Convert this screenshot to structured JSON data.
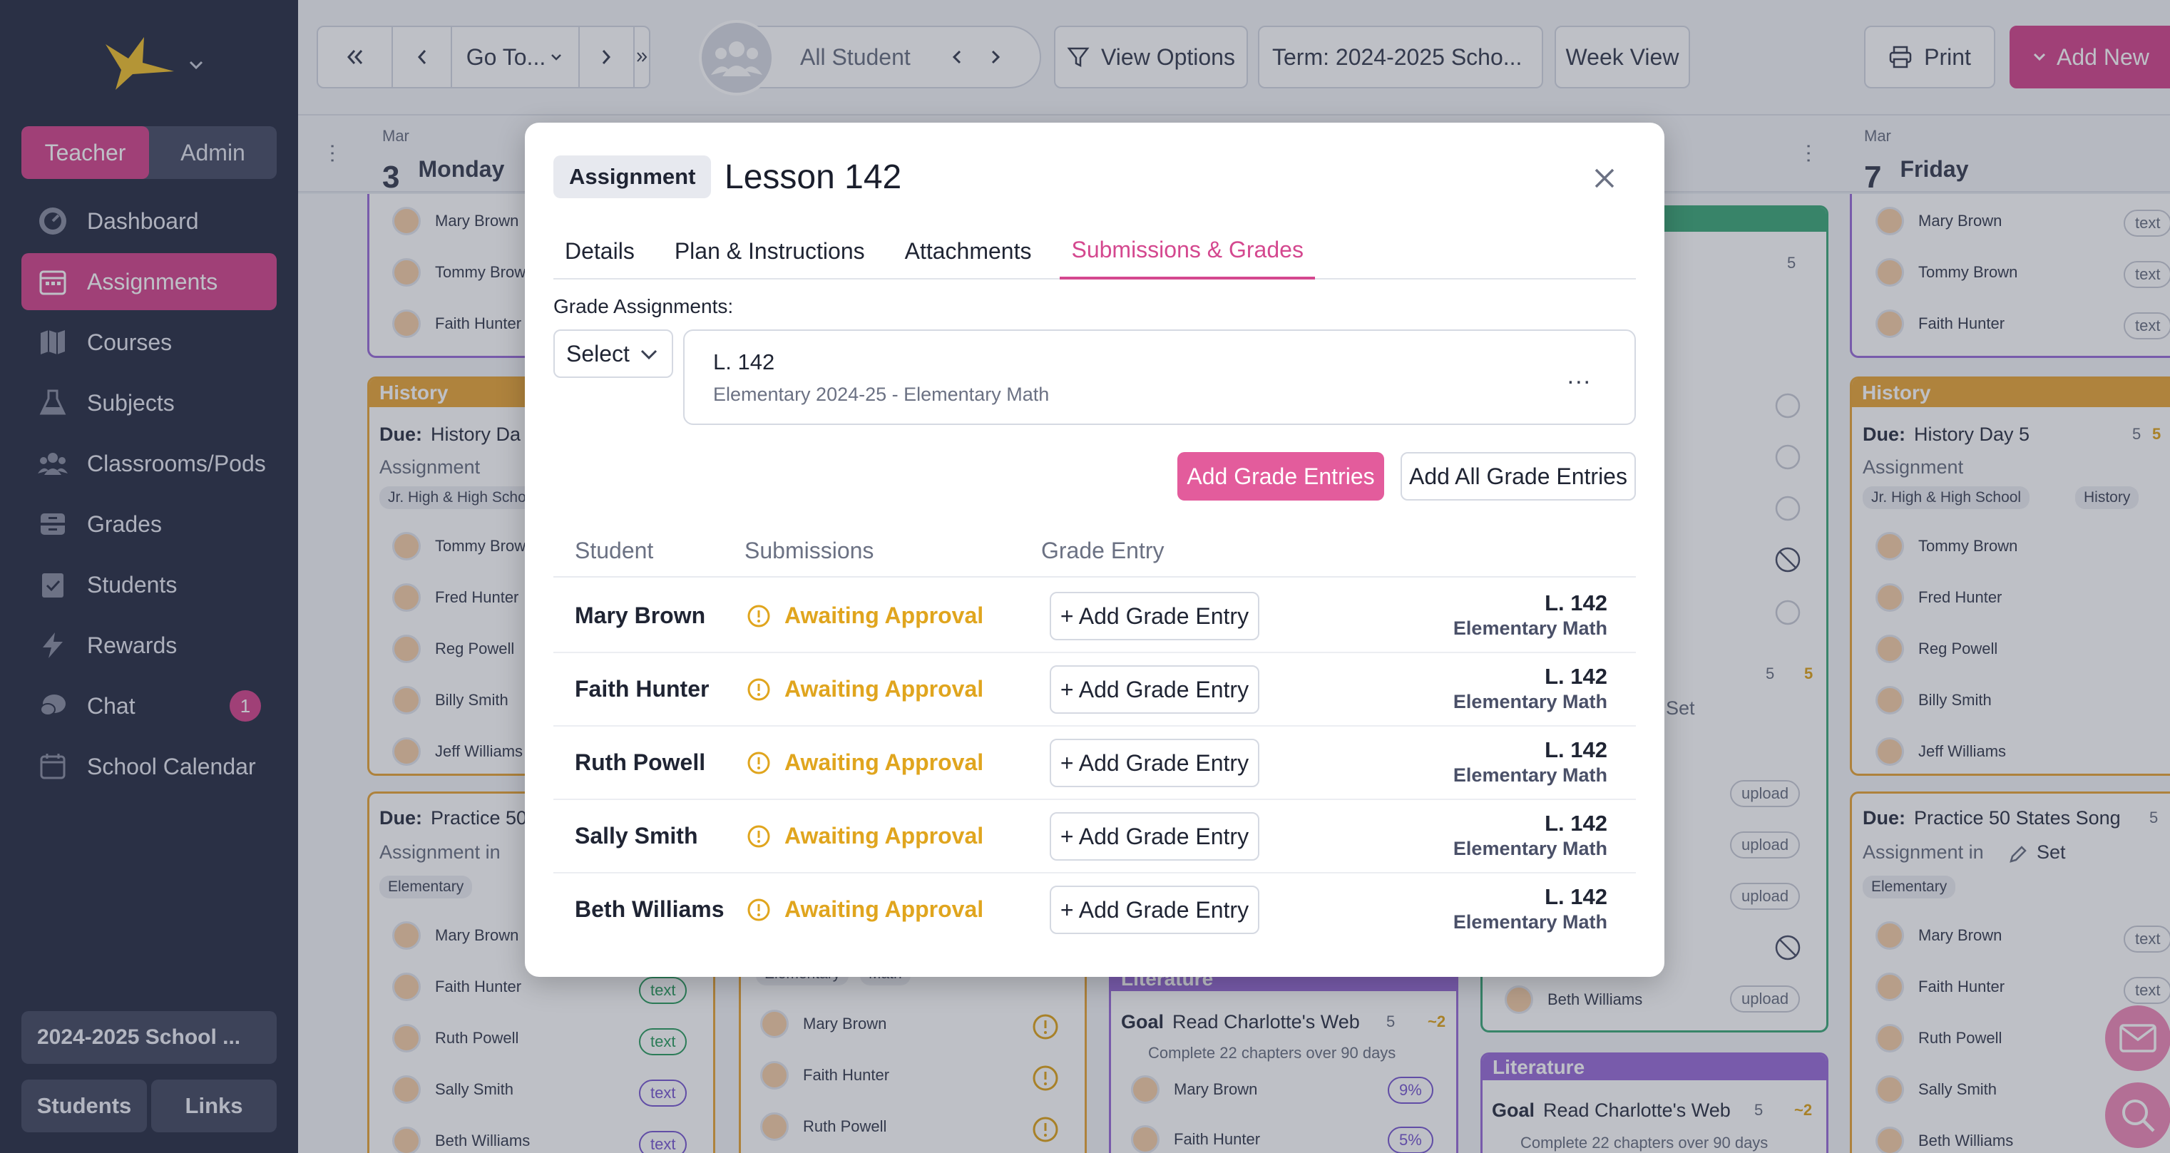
{
  "sidebar": {
    "roles": [
      "Teacher",
      "Admin"
    ],
    "active_role": "Teacher",
    "items": [
      {
        "label": "Dashboard",
        "icon": "dashboard-icon"
      },
      {
        "label": "Assignments",
        "icon": "calendar-icon",
        "active": true
      },
      {
        "label": "Courses",
        "icon": "map-icon"
      },
      {
        "label": "Subjects",
        "icon": "flask-icon"
      },
      {
        "label": "Classrooms/Pods",
        "icon": "group-icon"
      },
      {
        "label": "Grades",
        "icon": "tray-icon"
      },
      {
        "label": "Students",
        "icon": "clipboard-icon"
      },
      {
        "label": "Rewards",
        "icon": "bolt-icon"
      },
      {
        "label": "Chat",
        "icon": "chat-icon",
        "badge": "1"
      },
      {
        "label": "School Calendar",
        "icon": "calendar-outline-icon"
      }
    ],
    "school_year": "2024-2025 School ...",
    "bottom_buttons": [
      "Students",
      "Links"
    ]
  },
  "toolbar": {
    "goto": "Go To...",
    "student_filter": "All Student",
    "view_options": "View Options",
    "term": "Term: 2024-2025 Scho...",
    "week_view": "Week View",
    "print": "Print",
    "add_new": "Add New"
  },
  "calendar": {
    "days": [
      {
        "month": "Mar",
        "num": "3",
        "name": "Monday"
      },
      {
        "month": "Mar",
        "num": "7",
        "name": "Friday"
      }
    ],
    "monday_top_students": [
      "Mary Brown",
      "Tommy Brow",
      "Faith Hunter"
    ],
    "monday_history_title": "History",
    "monday_history_due_label": "Due:",
    "monday_history_due": "History Da",
    "monday_history_type": "Assignment",
    "monday_history_tag": "Jr. High & High Scho",
    "monday_history_students": [
      "Tommy Brow",
      "Fred Hunter",
      "Reg Powell",
      "Billy Smith",
      "Jeff Williams"
    ],
    "monday_practice_due_label": "Due:",
    "monday_practice_due": "Practice 50",
    "monday_practice_type": "Assignment in",
    "monday_practice_tag": "Elementary",
    "monday_practice_students": [
      "Mary Brown",
      "Faith Hunter",
      "Ruth Powell",
      "Sally Smith",
      "Beth Williams"
    ],
    "monday_practice_pills": [
      "text",
      "text",
      "text",
      "text"
    ],
    "tuesday_tags": [
      "Elementary",
      "Math"
    ],
    "tuesday_students": [
      "Mary Brown",
      "Faith Hunter",
      "Ruth Powell"
    ],
    "wednesday_lit_title": "Literature",
    "wednesday_goal_label": "Goal",
    "wednesday_goal": "Read Charlotte's Web",
    "wednesday_goal_meta": "5",
    "wednesday_goal_reward": "~2",
    "wednesday_goal_desc": "Complete 22 chapters over 90 days",
    "wednesday_students": [
      "Mary Brown",
      "Faith Hunter"
    ],
    "wednesday_pcts": [
      "9%",
      "5%"
    ],
    "thursday_meta_count": "5",
    "thursday_meta_count2": "5",
    "thursday_meta_reward": "5",
    "thursday_set": "Set",
    "thursday_uploads": [
      "upload",
      "upload",
      "upload",
      "upload"
    ],
    "thursday_last_student": "Beth Williams",
    "thursday_lit_title": "Literature",
    "thursday_goal_label": "Goal",
    "thursday_goal": "Read Charlotte's Web",
    "thursday_goal_meta": "5",
    "thursday_goal_reward": "~2",
    "thursday_goal_desc": "Complete 22 chapters over 90 days",
    "friday_top_students": [
      "Mary Brown",
      "Tommy Brown",
      "Faith Hunter"
    ],
    "friday_top_pills": [
      "text",
      "text",
      "text"
    ],
    "friday_history_title": "History",
    "friday_history_due_label": "Due:",
    "friday_history_due": "History Day 5",
    "friday_history_meta": "5",
    "friday_history_reward": "5",
    "friday_history_type": "Assignment",
    "friday_history_tags": [
      "Jr. High & High School",
      "History"
    ],
    "friday_history_students": [
      "Tommy Brown",
      "Fred Hunter",
      "Reg Powell",
      "Billy Smith",
      "Jeff Williams"
    ],
    "friday_practice_due_label": "Due:",
    "friday_practice_due": "Practice 50 States Song",
    "friday_practice_meta": "5",
    "friday_practice_type": "Assignment in",
    "friday_practice_set": "Set",
    "friday_practice_tag": "Elementary",
    "friday_practice_students": [
      "Mary Brown",
      "Faith Hunter",
      "Ruth Powell",
      "Sally Smith",
      "Beth Williams"
    ],
    "friday_practice_pills": [
      "text",
      "text"
    ]
  },
  "modal": {
    "type": "Assignment",
    "title": "Lesson 142",
    "tabs": [
      "Details",
      "Plan & Instructions",
      "Attachments",
      "Submissions & Grades"
    ],
    "active_tab": "Submissions & Grades",
    "grade_label": "Grade Assignments:",
    "select_label": "Select",
    "lesson_name": "L. 142",
    "lesson_sub": "Elementary 2024-25 - Elementary Math",
    "lesson_more": "...",
    "add_grade_entries": "Add Grade Entries",
    "add_all_grade_entries": "Add All Grade Entries",
    "columns": [
      "Student",
      "Submissions",
      "Grade Entry"
    ],
    "rows": [
      {
        "student": "Mary Brown",
        "status": "Awaiting Approval",
        "action": "+ Add Grade Entry",
        "code": "L. 142",
        "course": "Elementary Math"
      },
      {
        "student": "Faith Hunter",
        "status": "Awaiting Approval",
        "action": "+ Add Grade Entry",
        "code": "L. 142",
        "course": "Elementary Math"
      },
      {
        "student": "Ruth Powell",
        "status": "Awaiting Approval",
        "action": "+ Add Grade Entry",
        "code": "L. 142",
        "course": "Elementary Math"
      },
      {
        "student": "Sally Smith",
        "status": "Awaiting Approval",
        "action": "+ Add Grade Entry",
        "code": "L. 142",
        "course": "Elementary Math"
      },
      {
        "student": "Beth Williams",
        "status": "Awaiting Approval",
        "action": "+ Add Grade Entry",
        "code": "L. 142",
        "course": "Elementary Math"
      }
    ]
  },
  "colors": {
    "accent": "#d4488f",
    "warning": "#e0a51e",
    "sidebar": "#2b3147"
  }
}
